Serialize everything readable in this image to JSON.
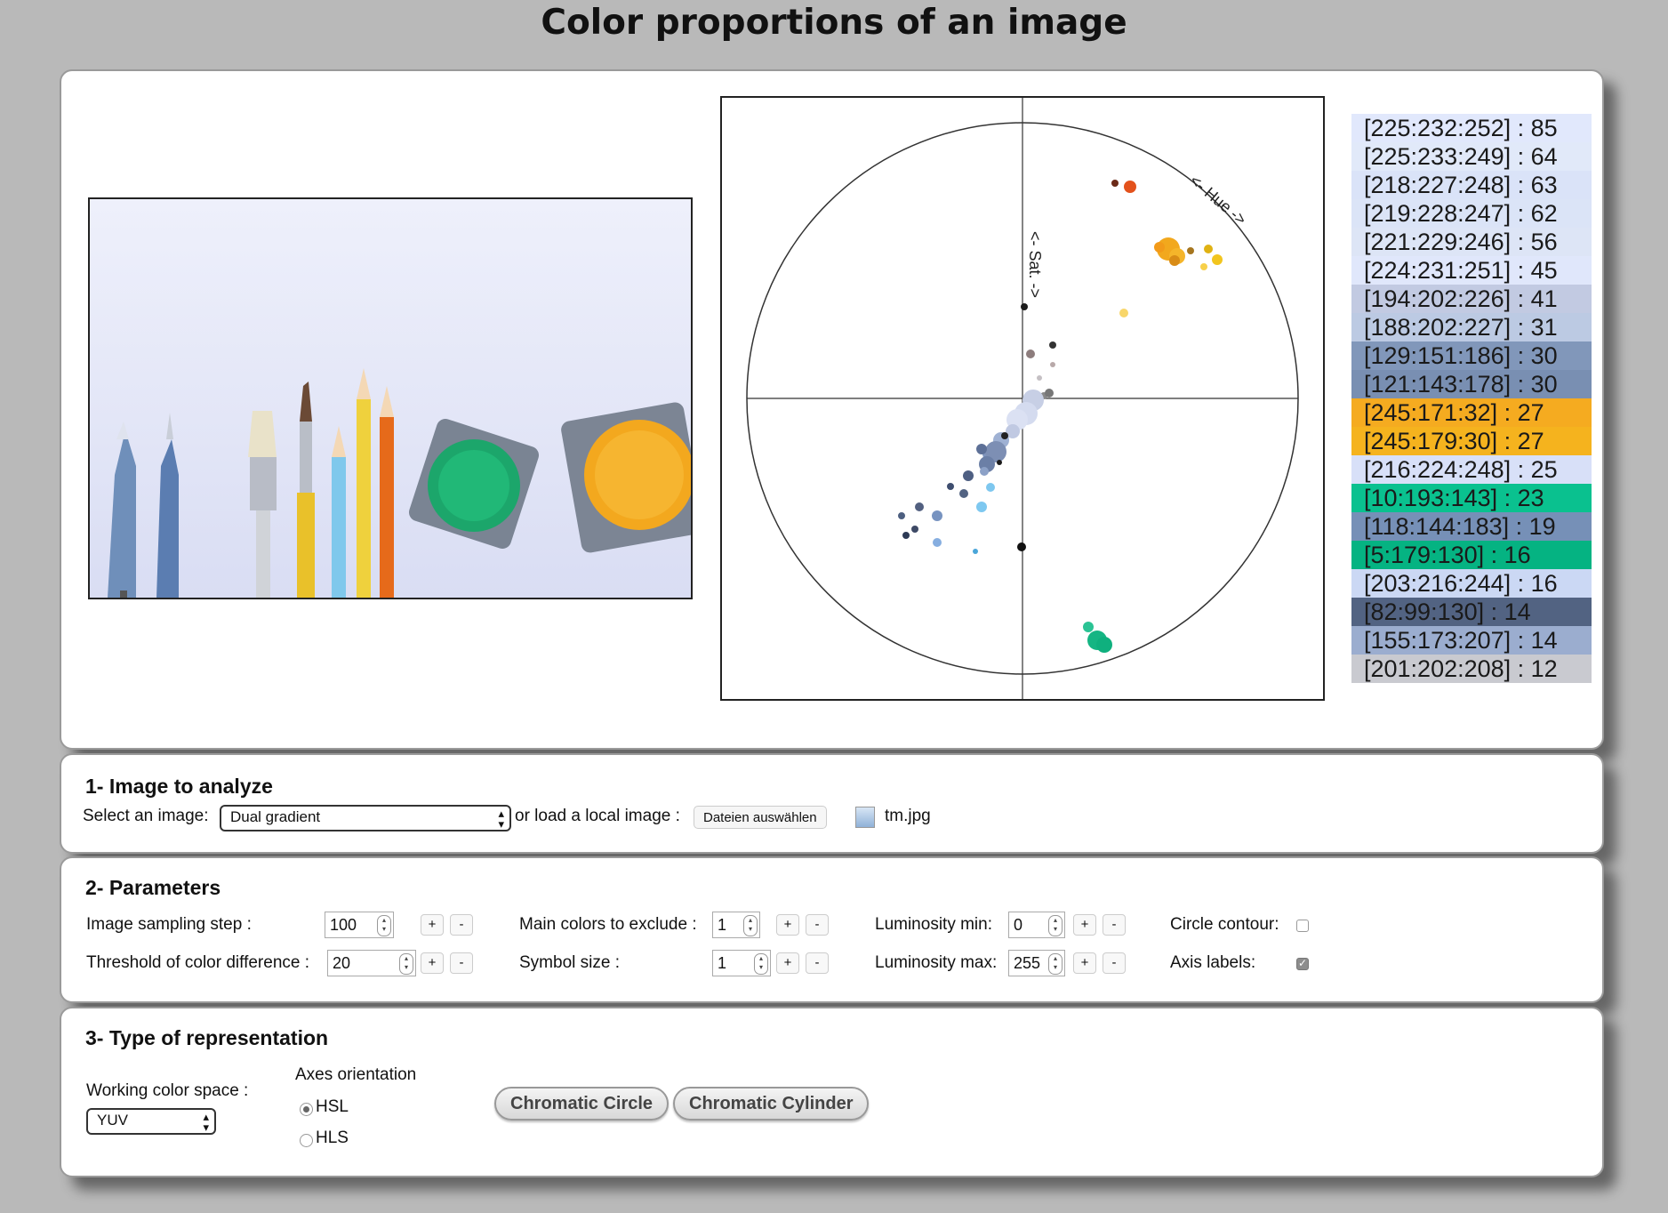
{
  "page_title": "Color proportions of an image",
  "chart": {
    "hue_label": "<- Hue ->",
    "sat_label": "<- Sat. ->"
  },
  "color_list": [
    {
      "label": "[225:232:252] : 85",
      "color": "#e1e8fc"
    },
    {
      "label": "[225:233:249] : 64",
      "color": "#e1e9f9"
    },
    {
      "label": "[218:227:248] : 63",
      "color": "#dae3f8"
    },
    {
      "label": "[219:228:247] : 62",
      "color": "#dbe4f7"
    },
    {
      "label": "[221:229:246] : 56",
      "color": "#dde5f6"
    },
    {
      "label": "[224:231:251] : 45",
      "color": "#e0e7fb"
    },
    {
      "label": "[194:202:226] : 41",
      "color": "#c2cae2"
    },
    {
      "label": "[188:202:227] : 31",
      "color": "#bccae3"
    },
    {
      "label": "[129:151:186] : 30",
      "color": "#8197ba"
    },
    {
      "label": "[121:143:178] : 30",
      "color": "#798fb2"
    },
    {
      "label": "[245:171:32] : 27",
      "color": "#f5ab20"
    },
    {
      "label": "[245:179:30] : 27",
      "color": "#f5b31e"
    },
    {
      "label": "[216:224:248] : 25",
      "color": "#d8e0f8"
    },
    {
      "label": "[10:193:143] : 23",
      "color": "#0ac18f"
    },
    {
      "label": "[118:144:183] : 19",
      "color": "#7690b7"
    },
    {
      "label": "[5:179:130] : 16",
      "color": "#05b382"
    },
    {
      "label": "[203:216:244] : 16",
      "color": "#cbd8f4"
    },
    {
      "label": "[82:99:130] : 14",
      "color": "#526382"
    },
    {
      "label": "[155:173:207] : 14",
      "color": "#9badcf"
    },
    {
      "label": "[201:202:208] : 12",
      "color": "#c9cad0"
    }
  ],
  "section1": {
    "title": "1- Image to analyze",
    "select_label": "Select an image:",
    "select_value": "Dual gradient",
    "or_load_label": "or load a local image :",
    "file_button": "Dateien auswählen",
    "file_name": "tm.jpg"
  },
  "section2": {
    "title": "2- Parameters",
    "sampling_label": "Image sampling step :",
    "sampling_value": "100",
    "threshold_label": "Threshold of color difference :",
    "threshold_value": "20",
    "exclude_label": "Main colors to exclude :",
    "exclude_value": "1",
    "symbol_label": "Symbol size :",
    "symbol_value": "1",
    "lum_min_label": "Luminosity min:",
    "lum_min_value": "0",
    "lum_max_label": "Luminosity max:",
    "lum_max_value": "255",
    "contour_label": "Circle contour:",
    "contour_checked": false,
    "axis_label": "Axis labels:",
    "axis_checked": true,
    "plus": "+",
    "minus": "-"
  },
  "section3": {
    "title": "3- Type of representation",
    "space_label": "Working color space :",
    "space_value": "YUV",
    "orientation_label": "Axes orientation",
    "hsl_label": "HSL",
    "hls_label": "HLS",
    "selected_orientation": "HSL",
    "circle_button": "Chromatic Circle",
    "cylinder_button": "Chromatic Cylinder"
  }
}
